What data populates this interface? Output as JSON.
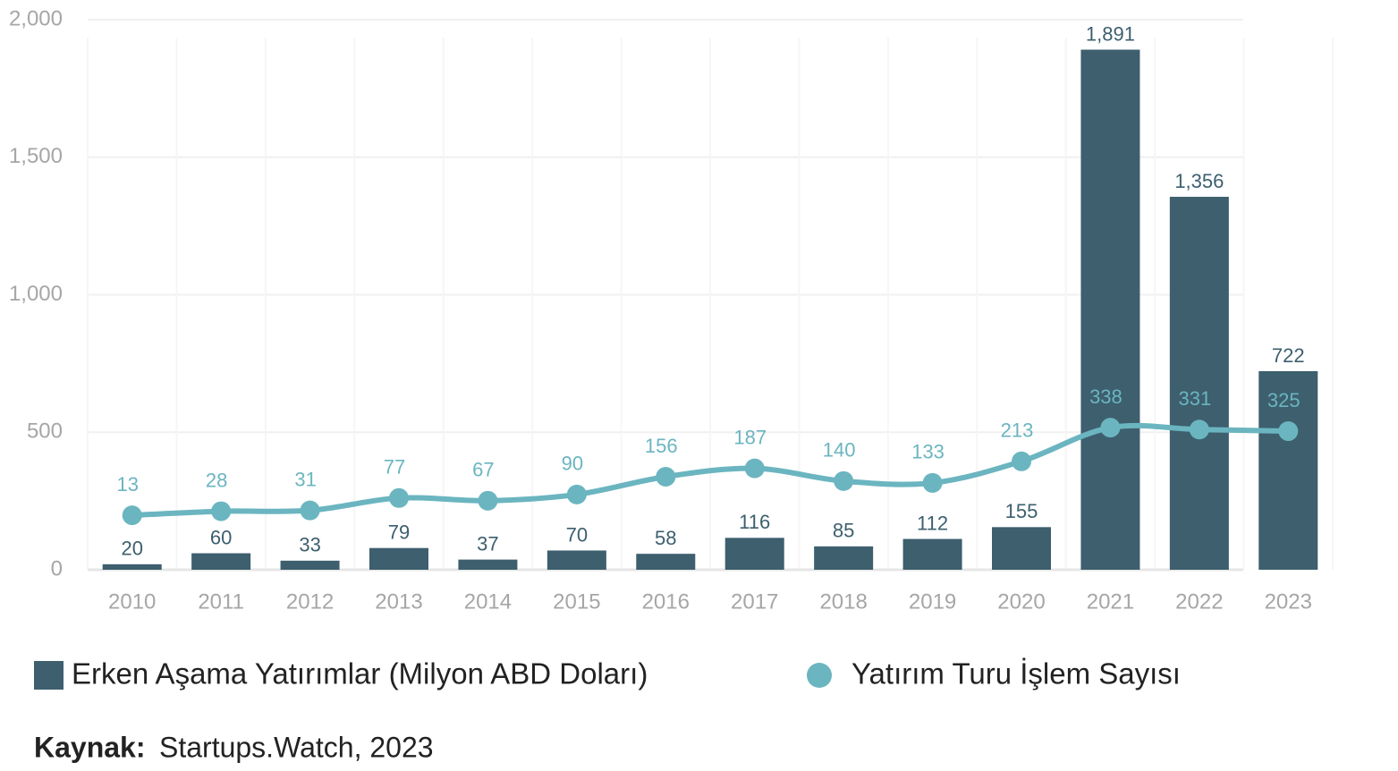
{
  "chart_data": {
    "type": "bar",
    "categories": [
      "2010",
      "2011",
      "2012",
      "2013",
      "2014",
      "2015",
      "2016",
      "2017",
      "2018",
      "2019",
      "2020",
      "2021",
      "2022",
      "2023"
    ],
    "series": [
      {
        "name": "Erken Aşama Yatırımlar (Milyon ABD Doları)",
        "type": "bar",
        "color": "#3d5f6e",
        "values": [
          20,
          60,
          33,
          79,
          37,
          70,
          58,
          116,
          85,
          112,
          155,
          1891,
          1356,
          722
        ],
        "value_labels": [
          "20",
          "60",
          "33",
          "79",
          "37",
          "70",
          "58",
          "116",
          "85",
          "112",
          "155",
          "1,891",
          "1,356",
          "722"
        ]
      },
      {
        "name": "Yatırım Turu İşlem Sayısı",
        "type": "line",
        "axis": "y2",
        "color": "#6bb5c0",
        "values": [
          13,
          28,
          31,
          77,
          67,
          90,
          156,
          187,
          140,
          133,
          213,
          338,
          331,
          325
        ]
      }
    ],
    "ylim": [
      0,
      2000
    ],
    "yticks": [
      0,
      500,
      {
        "value": 1000,
        "label": "1,000"
      },
      {
        "value": 1500,
        "label": "1,500"
      },
      {
        "value": 2000,
        "label": "2,000"
      }
    ],
    "y2lim": [
      -189,
      1851
    ],
    "grid": true,
    "legend": "bottom",
    "source_label": "Kaynak:",
    "source_text": "Startups.Watch, 2023"
  }
}
